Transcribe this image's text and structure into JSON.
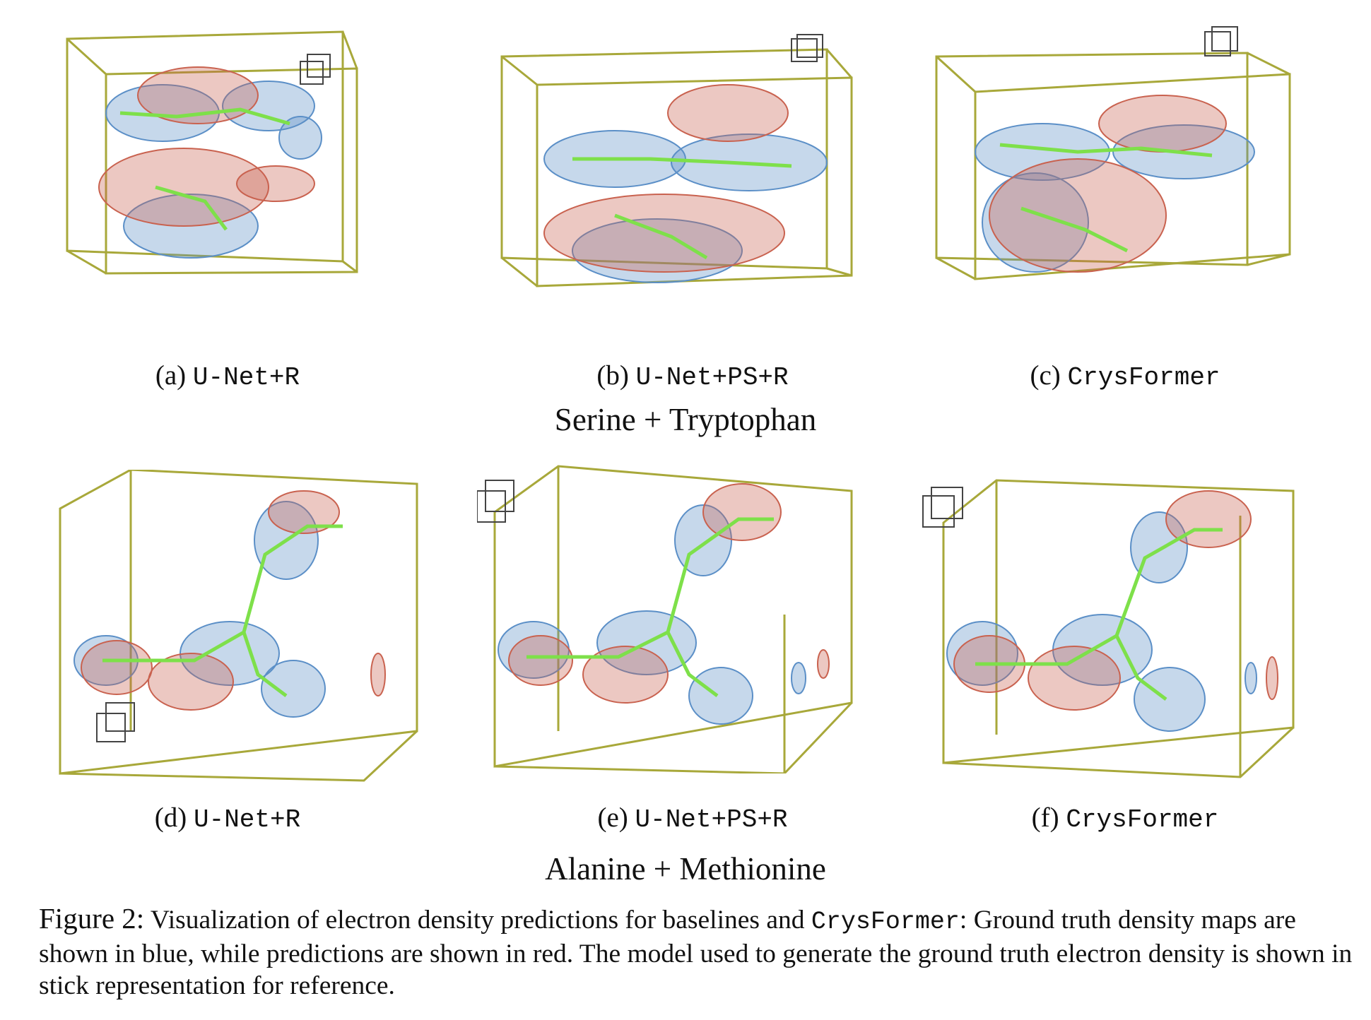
{
  "panels": [
    {
      "label": "(a)",
      "method": "U-Net+R"
    },
    {
      "label": "(b)",
      "method": "U-Net+PS+R"
    },
    {
      "label": "(c)",
      "method": "CrysFormer"
    },
    {
      "label": "(d)",
      "method": "U-Net+R"
    },
    {
      "label": "(e)",
      "method": "U-Net+PS+R"
    },
    {
      "label": "(f)",
      "method": "CrysFormer"
    }
  ],
  "groups": [
    "Serine + Tryptophan",
    "Alanine + Methionine"
  ],
  "caption": {
    "label": "Figure 2:",
    "text_before": "Visualization of electron density predictions for baselines and",
    "model_name": "CrysFormer",
    "text_after": ": Ground truth density maps are shown in blue, while predictions are shown in red. The model used to generate the ground truth electron density is shown in stick representation for reference."
  },
  "colors": {
    "ground_truth_mesh": "#5b8fc7",
    "prediction_mesh": "#c9624f",
    "stick_model": "#7ee04a",
    "unit_cell_box": "#a8a83a",
    "axis_cube": "#444444"
  }
}
